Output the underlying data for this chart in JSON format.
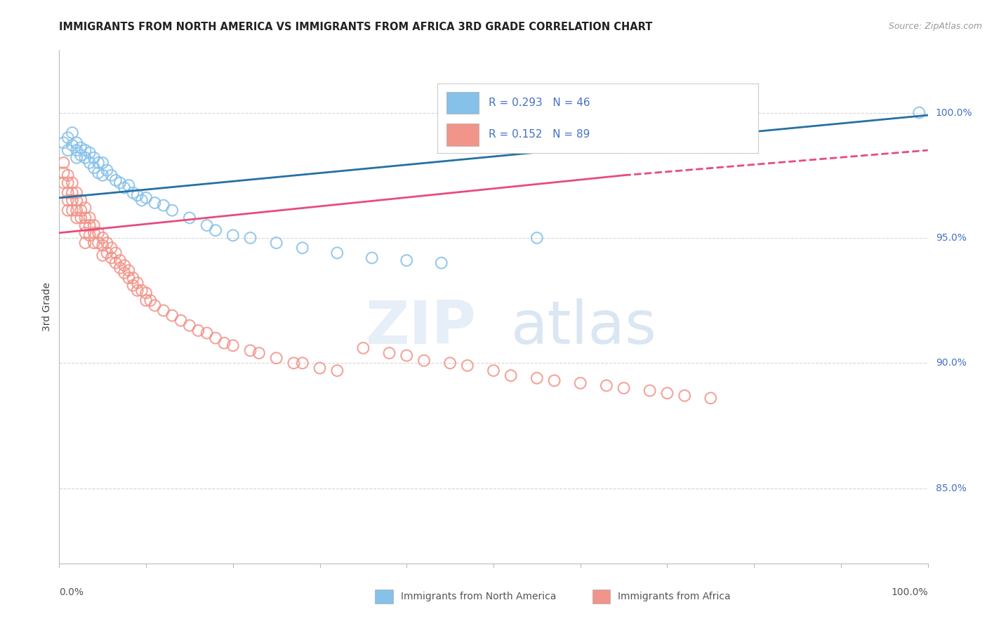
{
  "title": "IMMIGRANTS FROM NORTH AMERICA VS IMMIGRANTS FROM AFRICA 3RD GRADE CORRELATION CHART",
  "source": "Source: ZipAtlas.com",
  "ylabel": "3rd Grade",
  "y_tick_labels": [
    "100.0%",
    "95.0%",
    "90.0%",
    "85.0%"
  ],
  "y_tick_values": [
    1.0,
    0.95,
    0.9,
    0.85
  ],
  "xlim": [
    0.0,
    1.0
  ],
  "ylim": [
    0.82,
    1.025
  ],
  "legend_blue_label": "Immigrants from North America",
  "legend_pink_label": "Immigrants from Africa",
  "R_blue": 0.293,
  "N_blue": 46,
  "R_pink": 0.152,
  "N_pink": 89,
  "blue_color": "#85c1e9",
  "pink_color": "#f1948a",
  "blue_line_color": "#2471a3",
  "pink_line_color": "#e74c7c",
  "watermark_zip": "ZIP",
  "watermark_atlas": "atlas",
  "blue_x": [
    0.005,
    0.01,
    0.01,
    0.015,
    0.015,
    0.02,
    0.02,
    0.02,
    0.025,
    0.025,
    0.03,
    0.03,
    0.035,
    0.035,
    0.04,
    0.04,
    0.045,
    0.045,
    0.05,
    0.05,
    0.055,
    0.06,
    0.065,
    0.07,
    0.075,
    0.08,
    0.085,
    0.09,
    0.095,
    0.1,
    0.11,
    0.12,
    0.13,
    0.15,
    0.17,
    0.18,
    0.2,
    0.22,
    0.25,
    0.28,
    0.32,
    0.36,
    0.4,
    0.44,
    0.55,
    0.99
  ],
  "blue_y": [
    0.988,
    0.99,
    0.985,
    0.992,
    0.987,
    0.988,
    0.985,
    0.982,
    0.986,
    0.983,
    0.985,
    0.982,
    0.984,
    0.98,
    0.982,
    0.978,
    0.98,
    0.976,
    0.98,
    0.975,
    0.977,
    0.975,
    0.973,
    0.972,
    0.97,
    0.971,
    0.968,
    0.967,
    0.965,
    0.966,
    0.964,
    0.963,
    0.961,
    0.958,
    0.955,
    0.953,
    0.951,
    0.95,
    0.948,
    0.946,
    0.944,
    0.942,
    0.941,
    0.94,
    0.95,
    1.0
  ],
  "pink_x": [
    0.005,
    0.005,
    0.005,
    0.01,
    0.01,
    0.01,
    0.01,
    0.01,
    0.015,
    0.015,
    0.015,
    0.015,
    0.02,
    0.02,
    0.02,
    0.02,
    0.025,
    0.025,
    0.025,
    0.03,
    0.03,
    0.03,
    0.03,
    0.03,
    0.035,
    0.035,
    0.035,
    0.04,
    0.04,
    0.04,
    0.045,
    0.045,
    0.05,
    0.05,
    0.05,
    0.055,
    0.055,
    0.06,
    0.06,
    0.065,
    0.065,
    0.07,
    0.07,
    0.075,
    0.075,
    0.08,
    0.08,
    0.085,
    0.085,
    0.09,
    0.09,
    0.095,
    0.1,
    0.1,
    0.105,
    0.11,
    0.12,
    0.13,
    0.14,
    0.15,
    0.16,
    0.17,
    0.18,
    0.19,
    0.2,
    0.22,
    0.23,
    0.25,
    0.27,
    0.28,
    0.3,
    0.32,
    0.35,
    0.38,
    0.4,
    0.42,
    0.45,
    0.47,
    0.5,
    0.52,
    0.55,
    0.57,
    0.6,
    0.63,
    0.65,
    0.68,
    0.7,
    0.72,
    0.75
  ],
  "pink_y": [
    0.98,
    0.976,
    0.972,
    0.975,
    0.972,
    0.968,
    0.965,
    0.961,
    0.972,
    0.968,
    0.965,
    0.961,
    0.968,
    0.965,
    0.961,
    0.958,
    0.965,
    0.961,
    0.958,
    0.962,
    0.958,
    0.955,
    0.952,
    0.948,
    0.958,
    0.955,
    0.951,
    0.955,
    0.952,
    0.948,
    0.952,
    0.948,
    0.95,
    0.947,
    0.943,
    0.948,
    0.944,
    0.946,
    0.942,
    0.944,
    0.94,
    0.941,
    0.938,
    0.939,
    0.936,
    0.937,
    0.934,
    0.934,
    0.931,
    0.932,
    0.929,
    0.929,
    0.928,
    0.925,
    0.925,
    0.923,
    0.921,
    0.919,
    0.917,
    0.915,
    0.913,
    0.912,
    0.91,
    0.908,
    0.907,
    0.905,
    0.904,
    0.902,
    0.9,
    0.9,
    0.898,
    0.897,
    0.906,
    0.904,
    0.903,
    0.901,
    0.9,
    0.899,
    0.897,
    0.895,
    0.894,
    0.893,
    0.892,
    0.891,
    0.89,
    0.889,
    0.888,
    0.887,
    0.886
  ]
}
